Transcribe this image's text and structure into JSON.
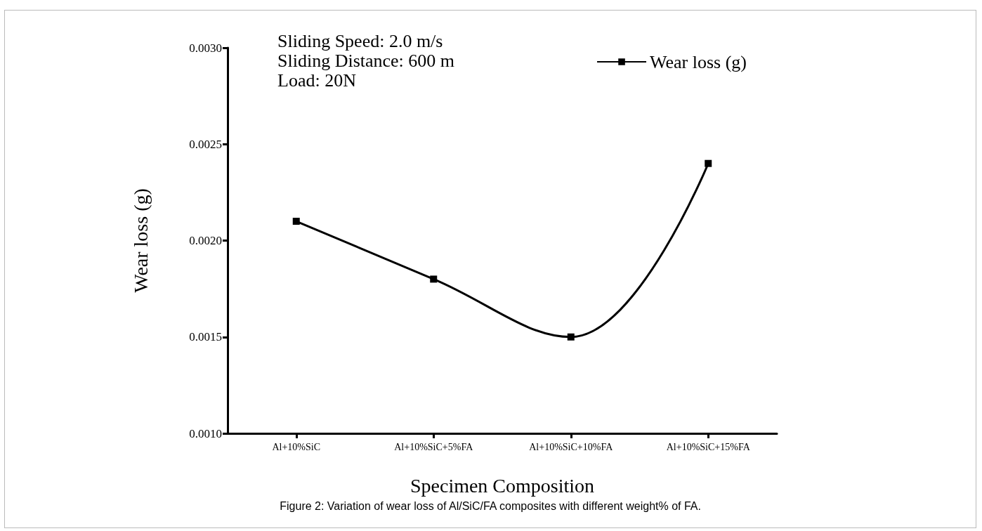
{
  "chart_data": {
    "type": "line",
    "xlabel": "Specimen Composition",
    "ylabel": "Wear loss (g)",
    "categories": [
      "Al+10%SiC",
      "Al+10%SiC+5%FA",
      "Al+10%SiC+10%FA",
      "Al+10%SiC+15%FA"
    ],
    "series": [
      {
        "name": "Wear loss (g)",
        "color": "#000000",
        "values": [
          0.0021,
          0.0018,
          0.0015,
          0.0024
        ]
      }
    ],
    "ylim": [
      0.001,
      0.003
    ],
    "yticks": [
      {
        "value": 0.001,
        "label": "0.0010"
      },
      {
        "value": 0.0015,
        "label": "0.0015"
      },
      {
        "value": 0.002,
        "label": "0.0020"
      },
      {
        "value": 0.0025,
        "label": "0.0025"
      },
      {
        "value": 0.003,
        "label": "0.0030"
      }
    ],
    "marker": "square",
    "line_style": "solid",
    "grid": false,
    "legend": "top right",
    "annotations": [
      "Sliding Speed: 2.0 m/s",
      "Sliding Distance: 600 m",
      "Load: 20N",
      "Figure 2: Variation of wear loss of Al/SiC/FA composites with different weight% of FA."
    ]
  }
}
